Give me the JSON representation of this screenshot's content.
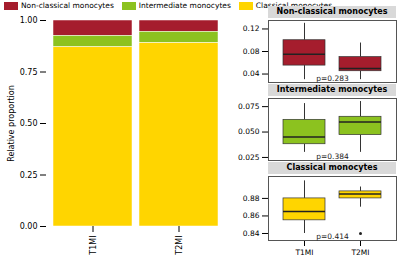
{
  "chart_data": [
    {
      "type": "bar",
      "stacked": true,
      "legend": "top",
      "categories": [
        "T1MI",
        "T2MI"
      ],
      "y_label": "Relative proportion",
      "series": [
        {
          "name": "Non-classical monocytes",
          "color": "#a51d2d",
          "values": [
            0.075,
            0.055
          ]
        },
        {
          "name": "Intermediate monocytes",
          "color": "#8cc21f",
          "values": [
            0.055,
            0.055
          ]
        },
        {
          "name": "Classical monocytes",
          "color": "#ffd500",
          "values": [
            0.87,
            0.89
          ]
        }
      ],
      "ylim": [
        0,
        1
      ],
      "yticks": [
        {
          "value": 0,
          "label": "0.00"
        },
        0.25,
        {
          "value": 0.5,
          "label": "0.50"
        },
        0.75,
        {
          "value": 1,
          "label": "1.00"
        }
      ],
      "grid": false
    },
    {
      "type": "box",
      "title": "Non-classical monocytes",
      "color": "#a51d2d",
      "categories": [
        "T1MI",
        "T2MI"
      ],
      "boxes": [
        {
          "min": 0.03,
          "q1": 0.055,
          "median": 0.075,
          "q3": 0.1,
          "max": 0.13,
          "outliers": []
        },
        {
          "min": 0.03,
          "q1": 0.045,
          "median": 0.05,
          "q3": 0.07,
          "max": 0.095,
          "outliers": []
        }
      ],
      "ylim": [
        0.025,
        0.135
      ],
      "yticks": [
        0.04,
        0.08,
        0.12
      ],
      "annotations": [
        "p=0.283"
      ],
      "tick_labels": "y"
    },
    {
      "type": "box",
      "title": "Intermediate monocytes",
      "color": "#8cc21f",
      "categories": [
        "T1MI",
        "T2MI"
      ],
      "boxes": [
        {
          "min": 0.03,
          "q1": 0.038,
          "median": 0.045,
          "q3": 0.062,
          "max": 0.078,
          "outliers": []
        },
        {
          "min": 0.03,
          "q1": 0.047,
          "median": 0.06,
          "q3": 0.065,
          "max": 0.08,
          "outliers": []
        }
      ],
      "ylim": [
        0.022,
        0.083
      ],
      "yticks": [
        0.025,
        {
          "value": 0.05,
          "label": "0.050"
        },
        0.075
      ],
      "annotations": [
        "p=0.384"
      ],
      "tick_labels": "y"
    },
    {
      "type": "box",
      "title": "Classical monocytes",
      "color": "#ffd500",
      "categories": [
        "T1MI",
        "T2MI"
      ],
      "boxes": [
        {
          "min": 0.84,
          "q1": 0.855,
          "median": 0.865,
          "q3": 0.88,
          "max": 0.9,
          "outliers": []
        },
        {
          "min": 0.87,
          "q1": 0.88,
          "median": 0.885,
          "q3": 0.888,
          "max": 0.893,
          "outliers": [
            0.84
          ]
        }
      ],
      "ylim": [
        0.832,
        0.905
      ],
      "yticks": [
        0.84,
        0.86,
        0.88
      ],
      "annotations": [
        "p=0.414"
      ]
    }
  ]
}
